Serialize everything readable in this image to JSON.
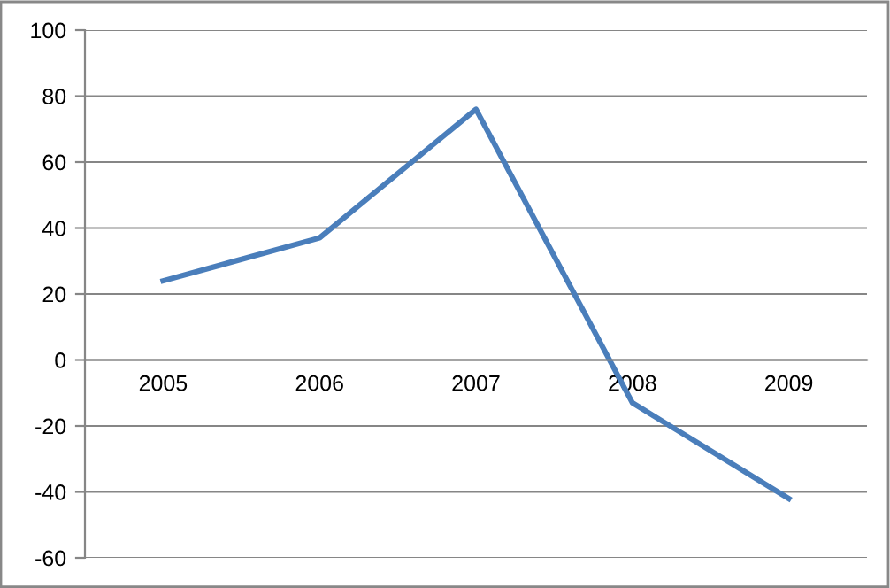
{
  "chart_data": {
    "type": "line",
    "categories": [
      "2005",
      "2006",
      "2007",
      "2008",
      "2009"
    ],
    "series": [
      {
        "color": "#4a7ebb",
        "values": [
          24,
          37,
          76,
          -13,
          -42
        ]
      }
    ],
    "ylim": [
      -60,
      100
    ],
    "yticks": [
      -60,
      -40,
      -20,
      0,
      20,
      40,
      60,
      80,
      100
    ],
    "grid": "y",
    "legend": false,
    "marker": "none",
    "line_style": "solid"
  }
}
